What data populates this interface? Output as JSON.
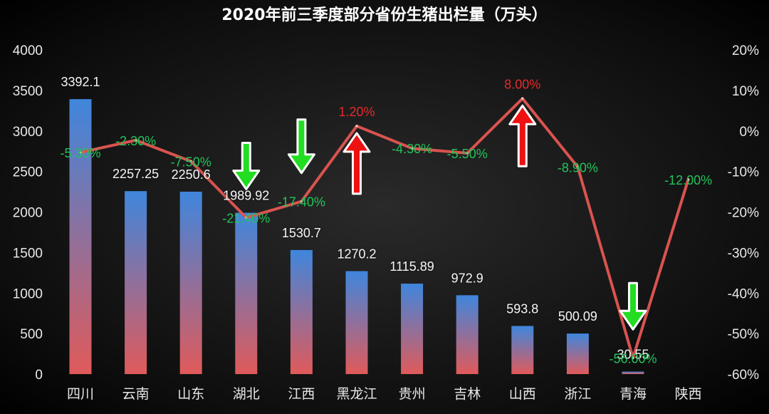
{
  "chart_data": {
    "type": "bar",
    "title": "2020年前三季度部分省份生猪出栏量（万头）",
    "categories": [
      "四川",
      "云南",
      "山东",
      "湖北",
      "江西",
      "黑龙江",
      "贵州",
      "吉林",
      "山西",
      "浙江",
      "青海",
      "陕西"
    ],
    "series": [
      {
        "type": "bar",
        "axis": "left",
        "values": [
          3392.1,
          2257.25,
          2250.6,
          1989.92,
          1530.7,
          1270.2,
          1115.89,
          972.9,
          593.8,
          500.09,
          30.55,
          null
        ],
        "labels": [
          "3392.1",
          "2257.25",
          "2250.6",
          "1989.92",
          "1530.7",
          "1270.2",
          "1115.89",
          "972.9",
          "593.8",
          "500.09",
          "30.55",
          ""
        ]
      },
      {
        "type": "line",
        "axis": "right",
        "values": [
          -5.3,
          -2.3,
          -7.5,
          -21.4,
          -17.4,
          1.2,
          -4.3,
          -5.5,
          8.0,
          -8.9,
          -56.0,
          -12.0
        ],
        "labels": [
          "-5.30%",
          "-2.30%",
          "-7.50%",
          "-21.40%",
          "-17.40%",
          "1.20%",
          "-4.30%",
          "-5.50%",
          "8.00%",
          "-8.90%",
          "-56.00%",
          "-12.00%"
        ]
      }
    ],
    "y_left": {
      "min": 0,
      "max": 4000,
      "ticks": [
        "0",
        "500",
        "1000",
        "1500",
        "2000",
        "2500",
        "3000",
        "3500",
        "4000"
      ]
    },
    "y_right": {
      "min": -60,
      "max": 20,
      "ticks": [
        "-60%",
        "-50%",
        "-40%",
        "-30%",
        "-20%",
        "-10%",
        "0%",
        "10%",
        "20%"
      ]
    },
    "arrows": [
      {
        "category": "湖北",
        "direction": "down"
      },
      {
        "category": "江西",
        "direction": "down"
      },
      {
        "category": "黑龙江",
        "direction": "up"
      },
      {
        "category": "山西",
        "direction": "up"
      },
      {
        "category": "青海",
        "direction": "down"
      }
    ],
    "colors": {
      "bar_top": "#3f86dd",
      "bar_bottom": "#e05a5a",
      "line": "#d9534f",
      "positive_label": "#e32b2b",
      "negative_label": "#22c45a",
      "arrow_up": "#ee1111",
      "arrow_down": "#22dd22",
      "text": "#e8e8e8"
    },
    "grid": false,
    "legend": "none"
  }
}
